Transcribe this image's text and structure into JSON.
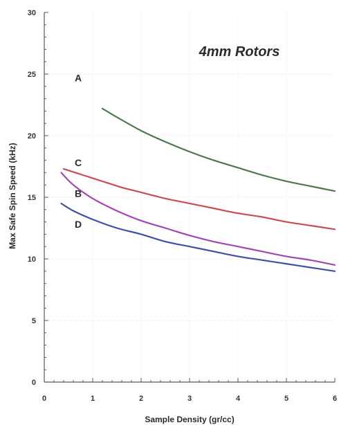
{
  "chart_data": {
    "type": "line",
    "title": "4mm Rotors",
    "xlabel": "Sample Density (gr/cc)",
    "ylabel": "Max Safe Spin Speed (kHz)",
    "xlim": [
      0,
      6
    ],
    "ylim": [
      0,
      30
    ],
    "xticks": [
      0,
      1,
      2,
      3,
      4,
      5,
      6
    ],
    "yticks": [
      0,
      5,
      10,
      15,
      20,
      25,
      30
    ],
    "grid": true,
    "legend": "inline labels",
    "series": [
      {
        "name": "A",
        "color": "#4a7a4a",
        "x": [
          1.2,
          1.5,
          2.0,
          2.5,
          3.0,
          3.5,
          4.0,
          4.5,
          5.0,
          5.5,
          6.0
        ],
        "y": [
          22.2,
          21.5,
          20.4,
          19.5,
          18.7,
          18.0,
          17.4,
          16.8,
          16.3,
          15.9,
          15.5
        ]
      },
      {
        "name": "C",
        "color": "#cc4b4b",
        "x": [
          0.4,
          0.8,
          1.2,
          1.6,
          2.0,
          2.5,
          3.0,
          3.5,
          4.0,
          4.5,
          5.0,
          5.5,
          6.0
        ],
        "y": [
          17.3,
          16.8,
          16.3,
          15.8,
          15.4,
          14.9,
          14.5,
          14.1,
          13.7,
          13.4,
          13.0,
          12.7,
          12.4
        ]
      },
      {
        "name": "B",
        "color": "#a545b5",
        "x": [
          0.35,
          0.6,
          1.0,
          1.5,
          2.0,
          2.5,
          3.0,
          3.5,
          4.0,
          4.5,
          5.0,
          5.5,
          6.0
        ],
        "y": [
          17.0,
          16.0,
          14.9,
          13.9,
          13.1,
          12.5,
          11.9,
          11.4,
          11.0,
          10.6,
          10.2,
          9.9,
          9.5
        ]
      },
      {
        "name": "D",
        "color": "#3d4fa8",
        "x": [
          0.35,
          0.6,
          1.0,
          1.5,
          2.0,
          2.5,
          3.0,
          3.5,
          4.0,
          4.5,
          5.0,
          5.5,
          6.0
        ],
        "y": [
          14.5,
          13.9,
          13.2,
          12.5,
          12.0,
          11.4,
          11.0,
          10.6,
          10.2,
          9.9,
          9.6,
          9.3,
          9.0
        ]
      }
    ],
    "series_labels": [
      {
        "text": "A",
        "x": 0.7,
        "y": 24.7
      },
      {
        "text": "C",
        "x": 0.7,
        "y": 17.8
      },
      {
        "text": "B",
        "x": 0.7,
        "y": 15.3
      },
      {
        "text": "D",
        "x": 0.7,
        "y": 12.8
      }
    ]
  }
}
